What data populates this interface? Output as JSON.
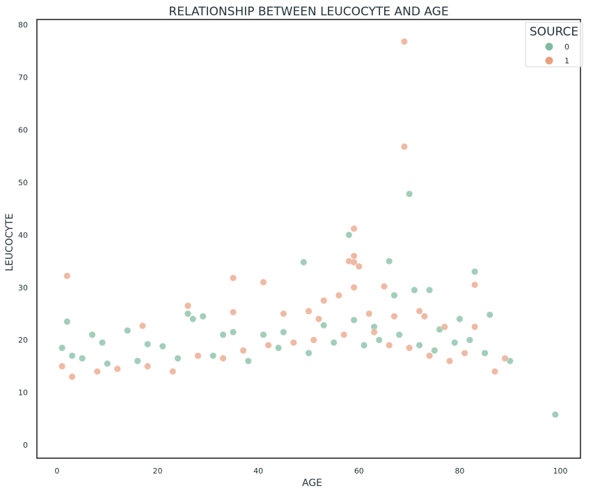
{
  "chart_data": {
    "type": "scatter",
    "title": "RELATIONSHIP BETWEEN LEUCOCYTE AND AGE",
    "xlabel": "AGE",
    "ylabel": "LEUCOCYTE",
    "xlim": [
      -4,
      104
    ],
    "ylim": [
      -2.5,
      81
    ],
    "xticks": [
      "0",
      "20",
      "40",
      "60",
      "80",
      "100"
    ],
    "yticks": [
      "0",
      "10",
      "20",
      "30",
      "40",
      "50",
      "60",
      "70",
      "80"
    ],
    "grid": false,
    "legend": {
      "title": "SOURCE",
      "placement": "top-right",
      "entries": [
        "0",
        "1"
      ]
    },
    "series": [
      {
        "name": "0",
        "color": "#7ebb9e",
        "points": [
          [
            2,
            23.5
          ],
          [
            7,
            21
          ],
          [
            9,
            19.5
          ],
          [
            14,
            21.8
          ],
          [
            18,
            19.2
          ],
          [
            21,
            18.8
          ],
          [
            26,
            25
          ],
          [
            27,
            24
          ],
          [
            29,
            24.5
          ],
          [
            33,
            21
          ],
          [
            35,
            21.5
          ],
          [
            41,
            21
          ],
          [
            45,
            21.5
          ],
          [
            49,
            34.8
          ],
          [
            53,
            22.8
          ],
          [
            58,
            40
          ],
          [
            59,
            23.8
          ],
          [
            63,
            22.5
          ],
          [
            66,
            35
          ],
          [
            67,
            28.5
          ],
          [
            70,
            47.8
          ],
          [
            71,
            29.5
          ],
          [
            74,
            29.5
          ],
          [
            76,
            22
          ],
          [
            80,
            24
          ],
          [
            83,
            33
          ],
          [
            86,
            24.8
          ],
          [
            99,
            5.8
          ],
          [
            1,
            18.5
          ],
          [
            3,
            17
          ],
          [
            5,
            16.5
          ],
          [
            10,
            15.5
          ],
          [
            16,
            16
          ],
          [
            24,
            16.5
          ],
          [
            31,
            17
          ],
          [
            38,
            16
          ],
          [
            44,
            18.5
          ],
          [
            50,
            17.5
          ],
          [
            55,
            19.5
          ],
          [
            61,
            19
          ],
          [
            64,
            20
          ],
          [
            68,
            21
          ],
          [
            72,
            19
          ],
          [
            75,
            18
          ],
          [
            79,
            19.5
          ],
          [
            82,
            20
          ],
          [
            85,
            17.5
          ],
          [
            90,
            16
          ]
        ]
      },
      {
        "name": "1",
        "color": "#e8a081",
        "points": [
          [
            2,
            32.2
          ],
          [
            17,
            22.7
          ],
          [
            26,
            26.5
          ],
          [
            35,
            31.8
          ],
          [
            35,
            25.3
          ],
          [
            41,
            31
          ],
          [
            45,
            25
          ],
          [
            50,
            25.5
          ],
          [
            52,
            24
          ],
          [
            53,
            27.5
          ],
          [
            56,
            28.5
          ],
          [
            58,
            35
          ],
          [
            59,
            41.2
          ],
          [
            59,
            36
          ],
          [
            59,
            34.8
          ],
          [
            60,
            34
          ],
          [
            59,
            30
          ],
          [
            62,
            25
          ],
          [
            65,
            30.2
          ],
          [
            67,
            24.5
          ],
          [
            69,
            76.8
          ],
          [
            69,
            56.8
          ],
          [
            72,
            25.5
          ],
          [
            73,
            24.5
          ],
          [
            77,
            22.5
          ],
          [
            83,
            30.5
          ],
          [
            83,
            22.5
          ],
          [
            89,
            16.5
          ],
          [
            1,
            15
          ],
          [
            3,
            13
          ],
          [
            8,
            14
          ],
          [
            12,
            14.5
          ],
          [
            18,
            15
          ],
          [
            23,
            14
          ],
          [
            28,
            17
          ],
          [
            33,
            16.5
          ],
          [
            37,
            18
          ],
          [
            42,
            19
          ],
          [
            47,
            19.5
          ],
          [
            51,
            20
          ],
          [
            57,
            21
          ],
          [
            63,
            21.5
          ],
          [
            66,
            19
          ],
          [
            70,
            18.5
          ],
          [
            74,
            17
          ],
          [
            78,
            16
          ],
          [
            81,
            17.5
          ],
          [
            87,
            14
          ]
        ]
      }
    ]
  }
}
